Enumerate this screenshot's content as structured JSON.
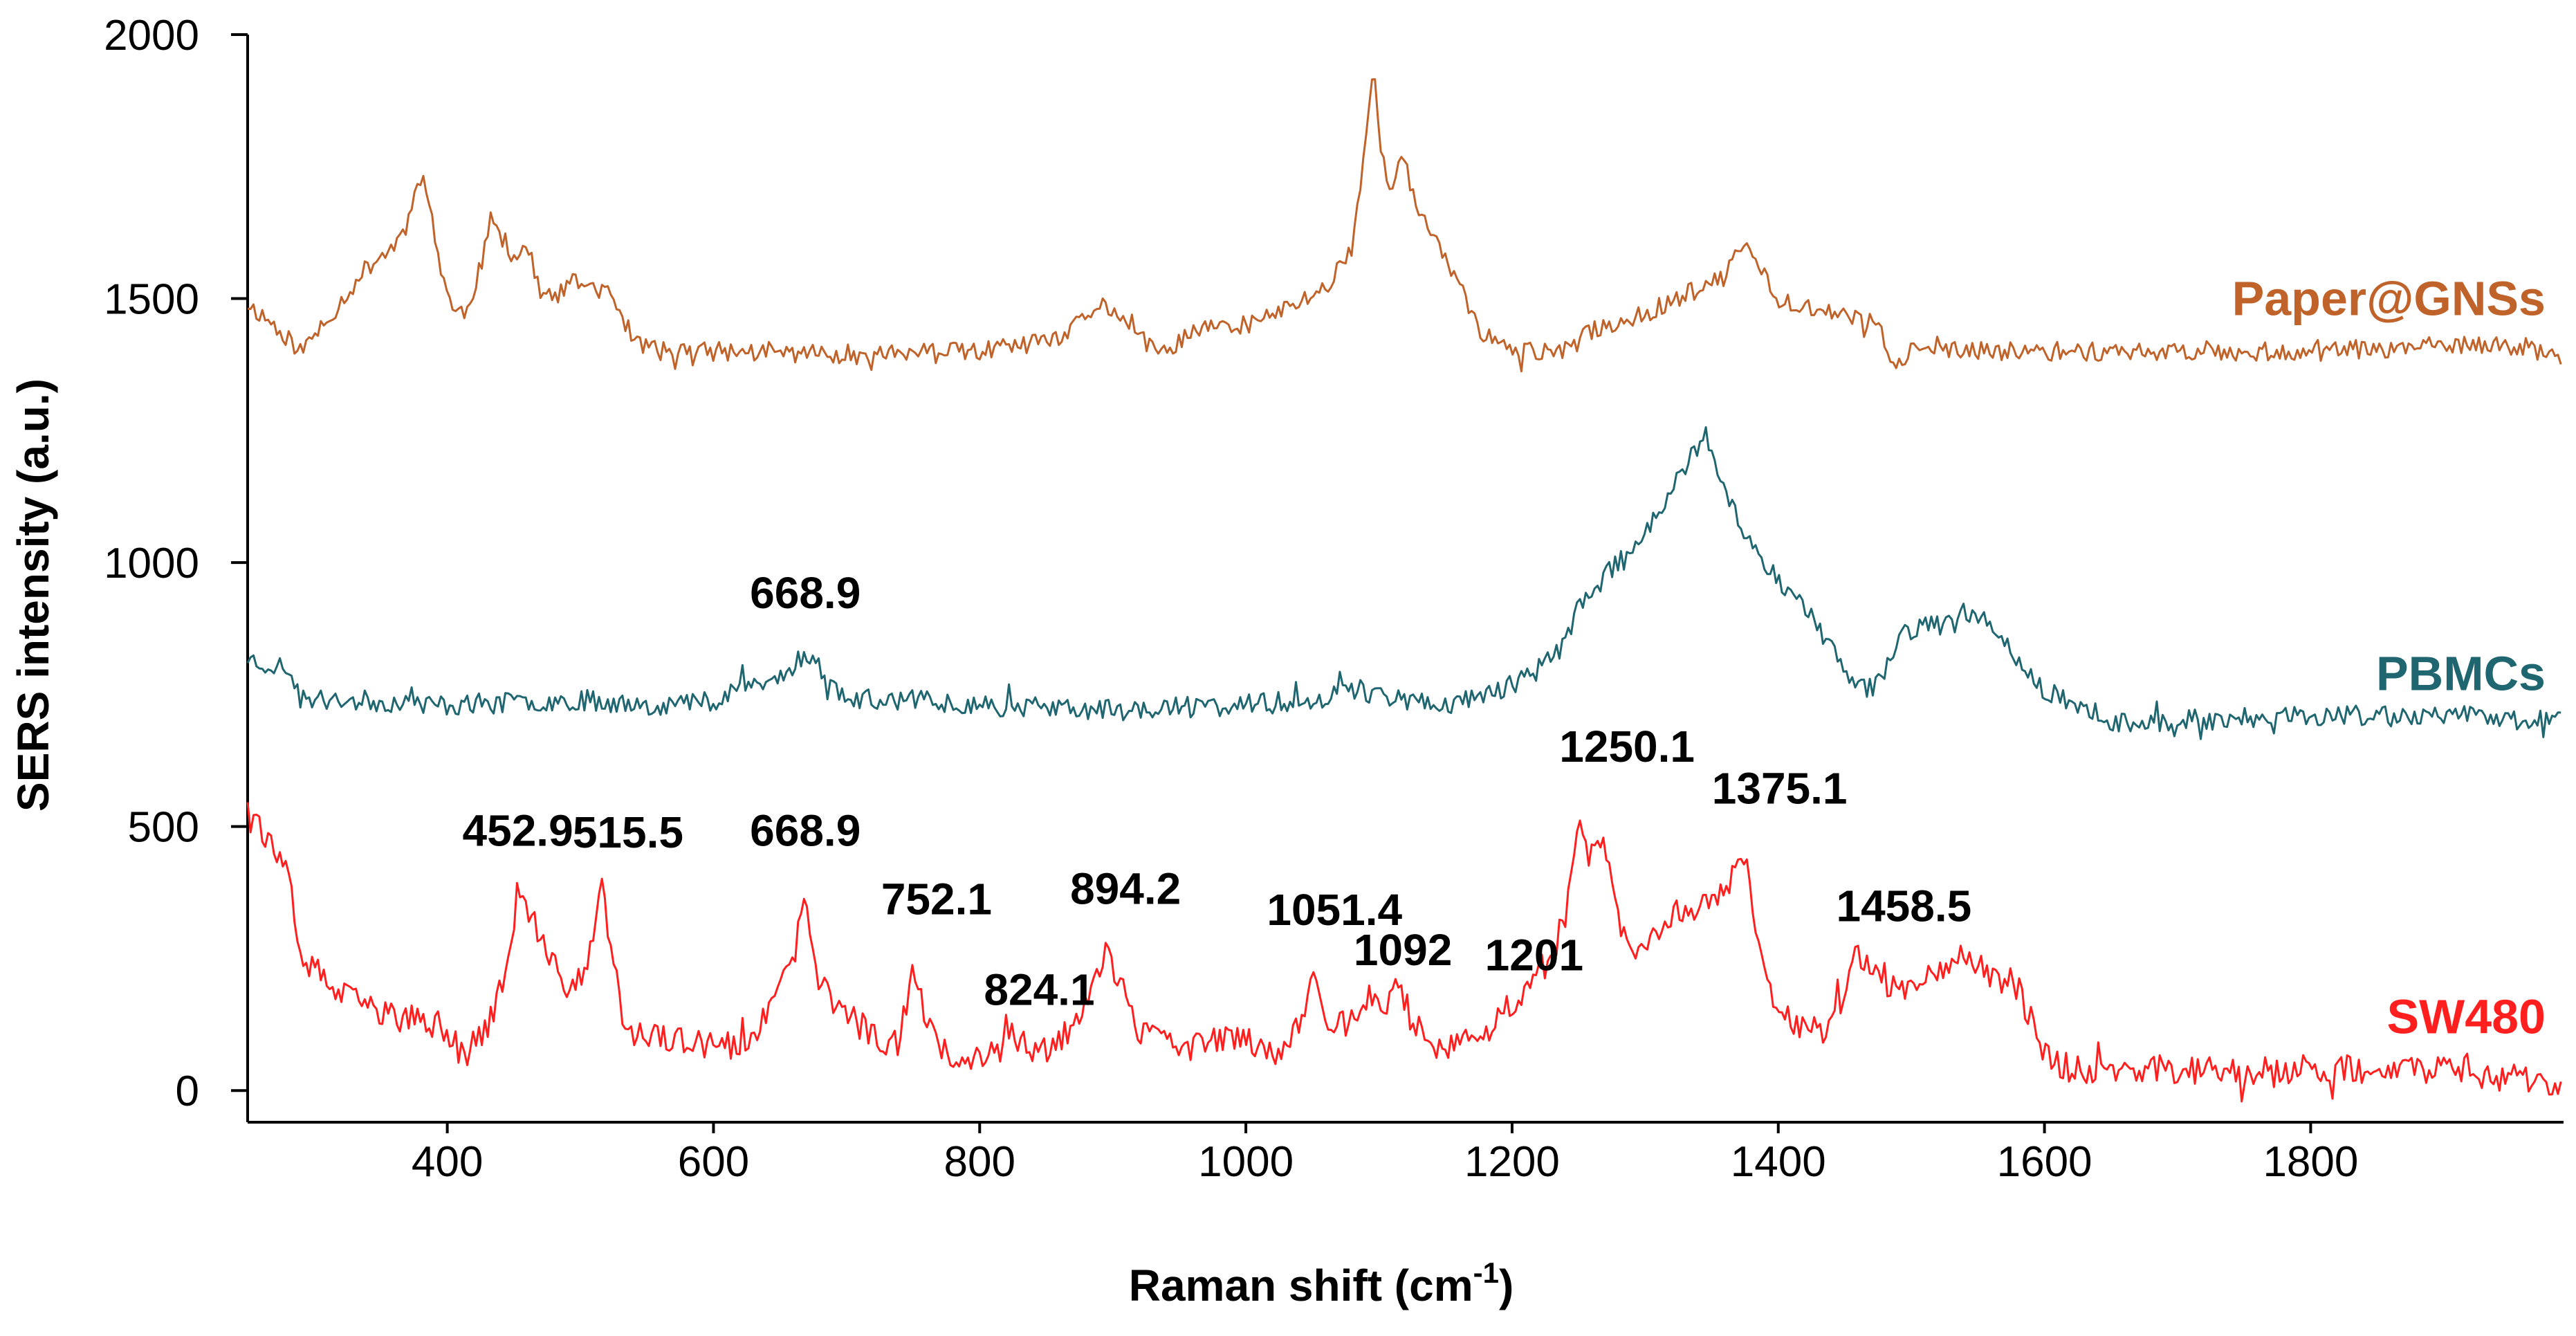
{
  "chart_data": {
    "type": "line",
    "title": "",
    "xlabel": "Raman shift (cm",
    "xlabel_superscript": "-1",
    "xlabel_suffix": ")",
    "ylabel": "SERS intensity (a.u.)",
    "xlim": [
      250,
      1990
    ],
    "ylim": [
      -60,
      2000
    ],
    "xticks": [
      400,
      600,
      800,
      1000,
      1200,
      1400,
      1600,
      1800
    ],
    "xtick_labels": [
      "400",
      "600",
      "800",
      "1000",
      "1200",
      "1400",
      "1600",
      "1800"
    ],
    "yticks": [
      0,
      500,
      1000,
      1500,
      2000
    ],
    "ytick_labels": [
      "0",
      "500",
      "1000",
      "1500",
      "2000"
    ],
    "grid": false,
    "series": [
      {
        "name": "Paper@GNSs",
        "color": "#c0632a",
        "noise": 18,
        "seed": 11,
        "points": [
          [
            250,
            1490
          ],
          [
            270,
            1450
          ],
          [
            290,
            1400
          ],
          [
            310,
            1460
          ],
          [
            340,
            1560
          ],
          [
            360,
            1600
          ],
          [
            370,
            1640
          ],
          [
            378,
            1740
          ],
          [
            385,
            1700
          ],
          [
            395,
            1560
          ],
          [
            405,
            1470
          ],
          [
            415,
            1480
          ],
          [
            425,
            1560
          ],
          [
            433,
            1650
          ],
          [
            440,
            1620
          ],
          [
            450,
            1580
          ],
          [
            460,
            1600
          ],
          [
            470,
            1510
          ],
          [
            480,
            1500
          ],
          [
            495,
            1530
          ],
          [
            510,
            1525
          ],
          [
            525,
            1500
          ],
          [
            540,
            1420
          ],
          [
            560,
            1400
          ],
          [
            600,
            1400
          ],
          [
            700,
            1395
          ],
          [
            800,
            1400
          ],
          [
            860,
            1420
          ],
          [
            890,
            1490
          ],
          [
            900,
            1480
          ],
          [
            915,
            1440
          ],
          [
            935,
            1390
          ],
          [
            960,
            1440
          ],
          [
            1000,
            1450
          ],
          [
            1030,
            1480
          ],
          [
            1060,
            1520
          ],
          [
            1080,
            1600
          ],
          [
            1088,
            1760
          ],
          [
            1096,
            1940
          ],
          [
            1102,
            1760
          ],
          [
            1110,
            1720
          ],
          [
            1118,
            1770
          ],
          [
            1125,
            1700
          ],
          [
            1140,
            1610
          ],
          [
            1150,
            1580
          ],
          [
            1160,
            1530
          ],
          [
            1175,
            1440
          ],
          [
            1200,
            1400
          ],
          [
            1220,
            1400
          ],
          [
            1240,
            1400
          ],
          [
            1260,
            1440
          ],
          [
            1300,
            1470
          ],
          [
            1340,
            1520
          ],
          [
            1360,
            1540
          ],
          [
            1375,
            1610
          ],
          [
            1385,
            1560
          ],
          [
            1400,
            1500
          ],
          [
            1430,
            1480
          ],
          [
            1460,
            1460
          ],
          [
            1475,
            1450
          ],
          [
            1485,
            1380
          ],
          [
            1500,
            1400
          ],
          [
            1600,
            1400
          ],
          [
            1700,
            1400
          ],
          [
            1800,
            1400
          ],
          [
            1900,
            1410
          ],
          [
            1960,
            1410
          ],
          [
            1990,
            1380
          ]
        ]
      },
      {
        "name": "PBMCs",
        "color": "#1f6670",
        "noise": 20,
        "seed": 23,
        "points": [
          [
            250,
            820
          ],
          [
            260,
            810
          ],
          [
            280,
            800
          ],
          [
            290,
            740
          ],
          [
            320,
            740
          ],
          [
            400,
            730
          ],
          [
            500,
            740
          ],
          [
            560,
            730
          ],
          [
            600,
            740
          ],
          [
            620,
            770
          ],
          [
            640,
            770
          ],
          [
            655,
            790
          ],
          [
            669,
            830
          ],
          [
            680,
            800
          ],
          [
            700,
            740
          ],
          [
            760,
            740
          ],
          [
            800,
            730
          ],
          [
            900,
            720
          ],
          [
            1000,
            730
          ],
          [
            1050,
            740
          ],
          [
            1080,
            760
          ],
          [
            1100,
            750
          ],
          [
            1120,
            740
          ],
          [
            1150,
            730
          ],
          [
            1180,
            750
          ],
          [
            1210,
            780
          ],
          [
            1230,
            820
          ],
          [
            1240,
            850
          ],
          [
            1250,
            920
          ],
          [
            1265,
            960
          ],
          [
            1280,
            1000
          ],
          [
            1300,
            1060
          ],
          [
            1320,
            1140
          ],
          [
            1335,
            1200
          ],
          [
            1345,
            1230
          ],
          [
            1355,
            1170
          ],
          [
            1370,
            1080
          ],
          [
            1390,
            1000
          ],
          [
            1410,
            940
          ],
          [
            1430,
            880
          ],
          [
            1450,
            790
          ],
          [
            1465,
            760
          ],
          [
            1480,
            800
          ],
          [
            1495,
            870
          ],
          [
            1510,
            880
          ],
          [
            1530,
            880
          ],
          [
            1545,
            920
          ],
          [
            1560,
            870
          ],
          [
            1580,
            820
          ],
          [
            1600,
            760
          ],
          [
            1620,
            730
          ],
          [
            1640,
            700
          ],
          [
            1700,
            700
          ],
          [
            1800,
            710
          ],
          [
            1900,
            710
          ],
          [
            1990,
            700
          ]
        ]
      },
      {
        "name": "SW480",
        "color": "#ff1f1f",
        "noise": 28,
        "seed": 37,
        "points": [
          [
            250,
            560
          ],
          [
            260,
            500
          ],
          [
            270,
            450
          ],
          [
            280,
            400
          ],
          [
            285,
            310
          ],
          [
            295,
            240
          ],
          [
            320,
            180
          ],
          [
            360,
            140
          ],
          [
            400,
            120
          ],
          [
            410,
            70
          ],
          [
            420,
            80
          ],
          [
            435,
            150
          ],
          [
            445,
            230
          ],
          [
            453,
            380
          ],
          [
            462,
            330
          ],
          [
            475,
            250
          ],
          [
            490,
            200
          ],
          [
            505,
            220
          ],
          [
            515,
            390
          ],
          [
            522,
            300
          ],
          [
            535,
            100
          ],
          [
            560,
            100
          ],
          [
            600,
            80
          ],
          [
            630,
            90
          ],
          [
            645,
            170
          ],
          [
            660,
            240
          ],
          [
            669,
            380
          ],
          [
            678,
            200
          ],
          [
            700,
            150
          ],
          [
            720,
            100
          ],
          [
            740,
            90
          ],
          [
            750,
            250
          ],
          [
            760,
            120
          ],
          [
            780,
            60
          ],
          [
            800,
            70
          ],
          [
            824,
            100
          ],
          [
            840,
            80
          ],
          [
            860,
            90
          ],
          [
            875,
            150
          ],
          [
            885,
            200
          ],
          [
            894,
            270
          ],
          [
            905,
            200
          ],
          [
            920,
            110
          ],
          [
            950,
            80
          ],
          [
            990,
            100
          ],
          [
            1010,
            90
          ],
          [
            1030,
            70
          ],
          [
            1045,
            160
          ],
          [
            1051,
            230
          ],
          [
            1060,
            140
          ],
          [
            1080,
            120
          ],
          [
            1092,
            180
          ],
          [
            1100,
            150
          ],
          [
            1115,
            200
          ],
          [
            1125,
            130
          ],
          [
            1140,
            90
          ],
          [
            1160,
            80
          ],
          [
            1180,
            110
          ],
          [
            1201,
            170
          ],
          [
            1215,
            200
          ],
          [
            1230,
            260
          ],
          [
            1240,
            330
          ],
          [
            1250,
            500
          ],
          [
            1258,
            440
          ],
          [
            1268,
            470
          ],
          [
            1278,
            340
          ],
          [
            1290,
            270
          ],
          [
            1310,
            300
          ],
          [
            1330,
            350
          ],
          [
            1345,
            360
          ],
          [
            1360,
            380
          ],
          [
            1375,
            460
          ],
          [
            1385,
            280
          ],
          [
            1400,
            150
          ],
          [
            1420,
            110
          ],
          [
            1440,
            120
          ],
          [
            1458,
            250
          ],
          [
            1470,
            230
          ],
          [
            1490,
            190
          ],
          [
            1510,
            220
          ],
          [
            1530,
            250
          ],
          [
            1545,
            250
          ],
          [
            1560,
            220
          ],
          [
            1580,
            200
          ],
          [
            1590,
            130
          ],
          [
            1600,
            70
          ],
          [
            1620,
            40
          ],
          [
            1640,
            40
          ],
          [
            1700,
            40
          ],
          [
            1800,
            40
          ],
          [
            1900,
            40
          ],
          [
            1990,
            10
          ]
        ]
      }
    ],
    "legend": [
      {
        "label": "Paper@GNSs",
        "color": "#c0632a"
      },
      {
        "label": "PBMCs",
        "color": "#1f6670"
      },
      {
        "label": "SW480",
        "color": "#ff1f1f"
      }
    ],
    "annotations": [
      {
        "series": "PBMCs",
        "x": 669,
        "y": 835,
        "label": "668.9"
      },
      {
        "series": "SW480",
        "x": 453,
        "y": 385,
        "label": "452.9"
      },
      {
        "series": "SW480",
        "x": 515,
        "y": 395,
        "label": "515.5"
      },
      {
        "series": "SW480",
        "x": 669,
        "y": 385,
        "label": "668.9"
      },
      {
        "series": "SW480",
        "x": 752,
        "y": 255,
        "label": "752.1"
      },
      {
        "series": "SW480",
        "x": 824,
        "y": 110,
        "label": "824.1"
      },
      {
        "series": "SW480",
        "x": 894,
        "y": 275,
        "label": "894.2"
      },
      {
        "series": "SW480",
        "x": 1051,
        "y": 235,
        "label": "1051.4"
      },
      {
        "series": "SW480",
        "x": 1092,
        "y": 185,
        "label": "1092"
      },
      {
        "series": "SW480",
        "x": 1201,
        "y": 175,
        "label": "1201"
      },
      {
        "series": "SW480",
        "x": 1250,
        "y": 505,
        "label": "1250.1"
      },
      {
        "series": "SW480",
        "x": 1375,
        "y": 465,
        "label": "1375.1"
      },
      {
        "series": "SW480",
        "x": 1458,
        "y": 255,
        "label": "1458.5"
      }
    ]
  }
}
